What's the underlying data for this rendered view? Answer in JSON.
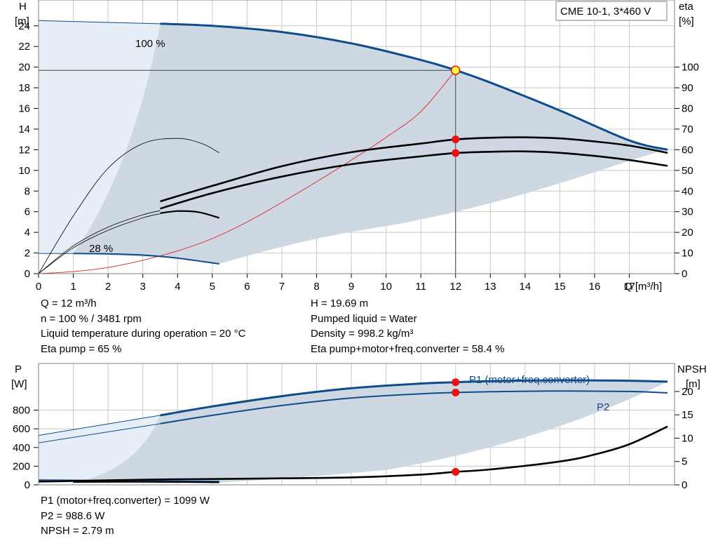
{
  "pump_label": "CME 10-1, 3*460 V",
  "colors": {
    "grid": "#c8c8c8",
    "envelope": "#cdd8e3",
    "light_envelope": "#e6eef7",
    "curve_blue": "#0f4c8c",
    "efficiency_red": "#e02020",
    "point_red": "#ee1111",
    "point_yellow": "#ffff33"
  },
  "top_chart": {
    "y_left": {
      "title": "H",
      "unit": "[m]",
      "ticks": [
        "0",
        "2",
        "4",
        "6",
        "8",
        "10",
        "12",
        "14",
        "16",
        "18",
        "20",
        "22",
        "24"
      ]
    },
    "y_right": {
      "title": "eta",
      "unit": "[%]",
      "ticks": [
        "0",
        "10",
        "20",
        "30",
        "40",
        "50",
        "60",
        "70",
        "80",
        "90",
        "100"
      ]
    },
    "x": {
      "unit": "Q [m³/h]",
      "ticks": [
        "0",
        "1",
        "2",
        "3",
        "4",
        "5",
        "6",
        "7",
        "8",
        "9",
        "10",
        "11",
        "12",
        "13",
        "14",
        "15",
        "16",
        "17"
      ]
    },
    "speed_labels": [
      "100 %",
      "28 %"
    ]
  },
  "bottom_chart": {
    "y_left": {
      "title": "P",
      "unit": "[W]",
      "ticks": [
        "0",
        "200",
        "400",
        "600",
        "800"
      ]
    },
    "y_right": {
      "title": "NPSH",
      "unit": "[m]",
      "ticks": [
        "0",
        "5",
        "10",
        "15",
        "20"
      ]
    },
    "curve_labels": [
      "P1 (motor+freq.converter)",
      "P2"
    ]
  },
  "info_block_1": {
    "left": [
      "Q = 12 m³/h",
      "n = 100 % / 3481 rpm",
      "Liquid temperature during operation = 20 °C",
      "Eta pump = 65 %"
    ],
    "right": [
      "H = 19.69 m",
      "Pumped liquid = Water",
      "Density = 998.2 kg/m³",
      "Eta pump+motor+freq.converter = 58.4 %"
    ]
  },
  "info_block_2": [
    "P1 (motor+freq.converter) = 1099 W",
    "P2 = 988.6 W",
    "NPSH = 2.79 m"
  ],
  "chart_data": [
    {
      "type": "line",
      "xlabel": "Q [m³/h]",
      "ylabel": "H [m]",
      "y2label": "eta [%]",
      "xlim": [
        0,
        18.3
      ],
      "ylim": [
        0,
        26.5
      ],
      "y2lim": [
        0,
        132.5
      ],
      "grid": true,
      "duty_point": {
        "x": 12,
        "y": 19.69
      },
      "series": [
        {
          "name": "100 %",
          "axis": "y",
          "x": [
            3.5,
            5,
            7,
            9,
            11,
            12,
            13,
            15,
            17,
            18.1
          ],
          "values": [
            24.2,
            24.0,
            23.4,
            22.3,
            20.7,
            19.7,
            18.5,
            15.8,
            12.9,
            12.0
          ]
        },
        {
          "name": "28 %",
          "axis": "y",
          "x": [
            1,
            2,
            3,
            4,
            5.2
          ],
          "values": [
            1.95,
            1.92,
            1.8,
            1.5,
            0.95
          ]
        },
        {
          "axis": "y2",
          "x": [
            0,
            1,
            2,
            3,
            4,
            5,
            6,
            7,
            8,
            9,
            10,
            11,
            12
          ],
          "values": [
            0,
            1,
            3,
            6.5,
            11,
            17,
            25,
            34.5,
            44.5,
            55,
            66,
            78.5,
            98.5
          ]
        },
        {
          "axis": "y2",
          "x": [
            3.5,
            5,
            7,
            9,
            11,
            12,
            13,
            14,
            15,
            16,
            17,
            18.1
          ],
          "values": [
            35,
            42.5,
            52,
            58.8,
            63,
            65,
            65.8,
            66,
            65.5,
            64,
            62,
            58.5
          ]
        },
        {
          "axis": "y2",
          "x": [
            3.5,
            5,
            7,
            9,
            11,
            12,
            13,
            14,
            15,
            16,
            17,
            18.1
          ],
          "values": [
            31.5,
            39,
            47,
            53,
            56.8,
            58.4,
            59,
            59.2,
            58.5,
            57,
            55,
            52.2
          ]
        }
      ],
      "operating_point_markers": [
        {
          "axis": "y2",
          "x": 12,
          "y": 65
        },
        {
          "axis": "y2",
          "x": 12,
          "y": 58.4
        }
      ]
    },
    {
      "type": "line",
      "xlim": [
        0,
        18.3
      ],
      "ylabel": "P [W]",
      "y2label": "NPSH [m]",
      "ylim": [
        0,
        1300
      ],
      "y2lim": [
        0,
        26
      ],
      "grid": true,
      "series": [
        {
          "name": "P1 (motor+freq.converter)",
          "axis": "y",
          "x": [
            3.5,
            5,
            7,
            9,
            11,
            12,
            13,
            15,
            17,
            18.1
          ],
          "values": [
            745,
            840,
            950,
            1035,
            1085,
            1099,
            1110,
            1120,
            1115,
            1105
          ]
        },
        {
          "name": "P2",
          "axis": "y",
          "x": [
            3.5,
            5,
            7,
            9,
            11,
            12,
            13,
            15,
            17,
            18.1
          ],
          "values": [
            655,
            745,
            850,
            930,
            975,
            988.6,
            997,
            1005,
            1000,
            985
          ]
        },
        {
          "axis": "y2",
          "x": [
            0,
            3.5,
            5,
            7,
            9,
            11,
            12,
            13,
            15,
            16,
            17,
            18.1
          ],
          "values": [
            0.7,
            1.15,
            1.25,
            1.4,
            1.6,
            2.2,
            2.79,
            3.3,
            5.0,
            6.5,
            8.7,
            12.5
          ]
        }
      ],
      "operating_point_markers": [
        {
          "axis": "y",
          "x": 12,
          "y": 1099
        },
        {
          "axis": "y",
          "x": 12,
          "y": 988.6
        },
        {
          "axis": "y2",
          "x": 12,
          "y": 2.79
        }
      ]
    }
  ]
}
